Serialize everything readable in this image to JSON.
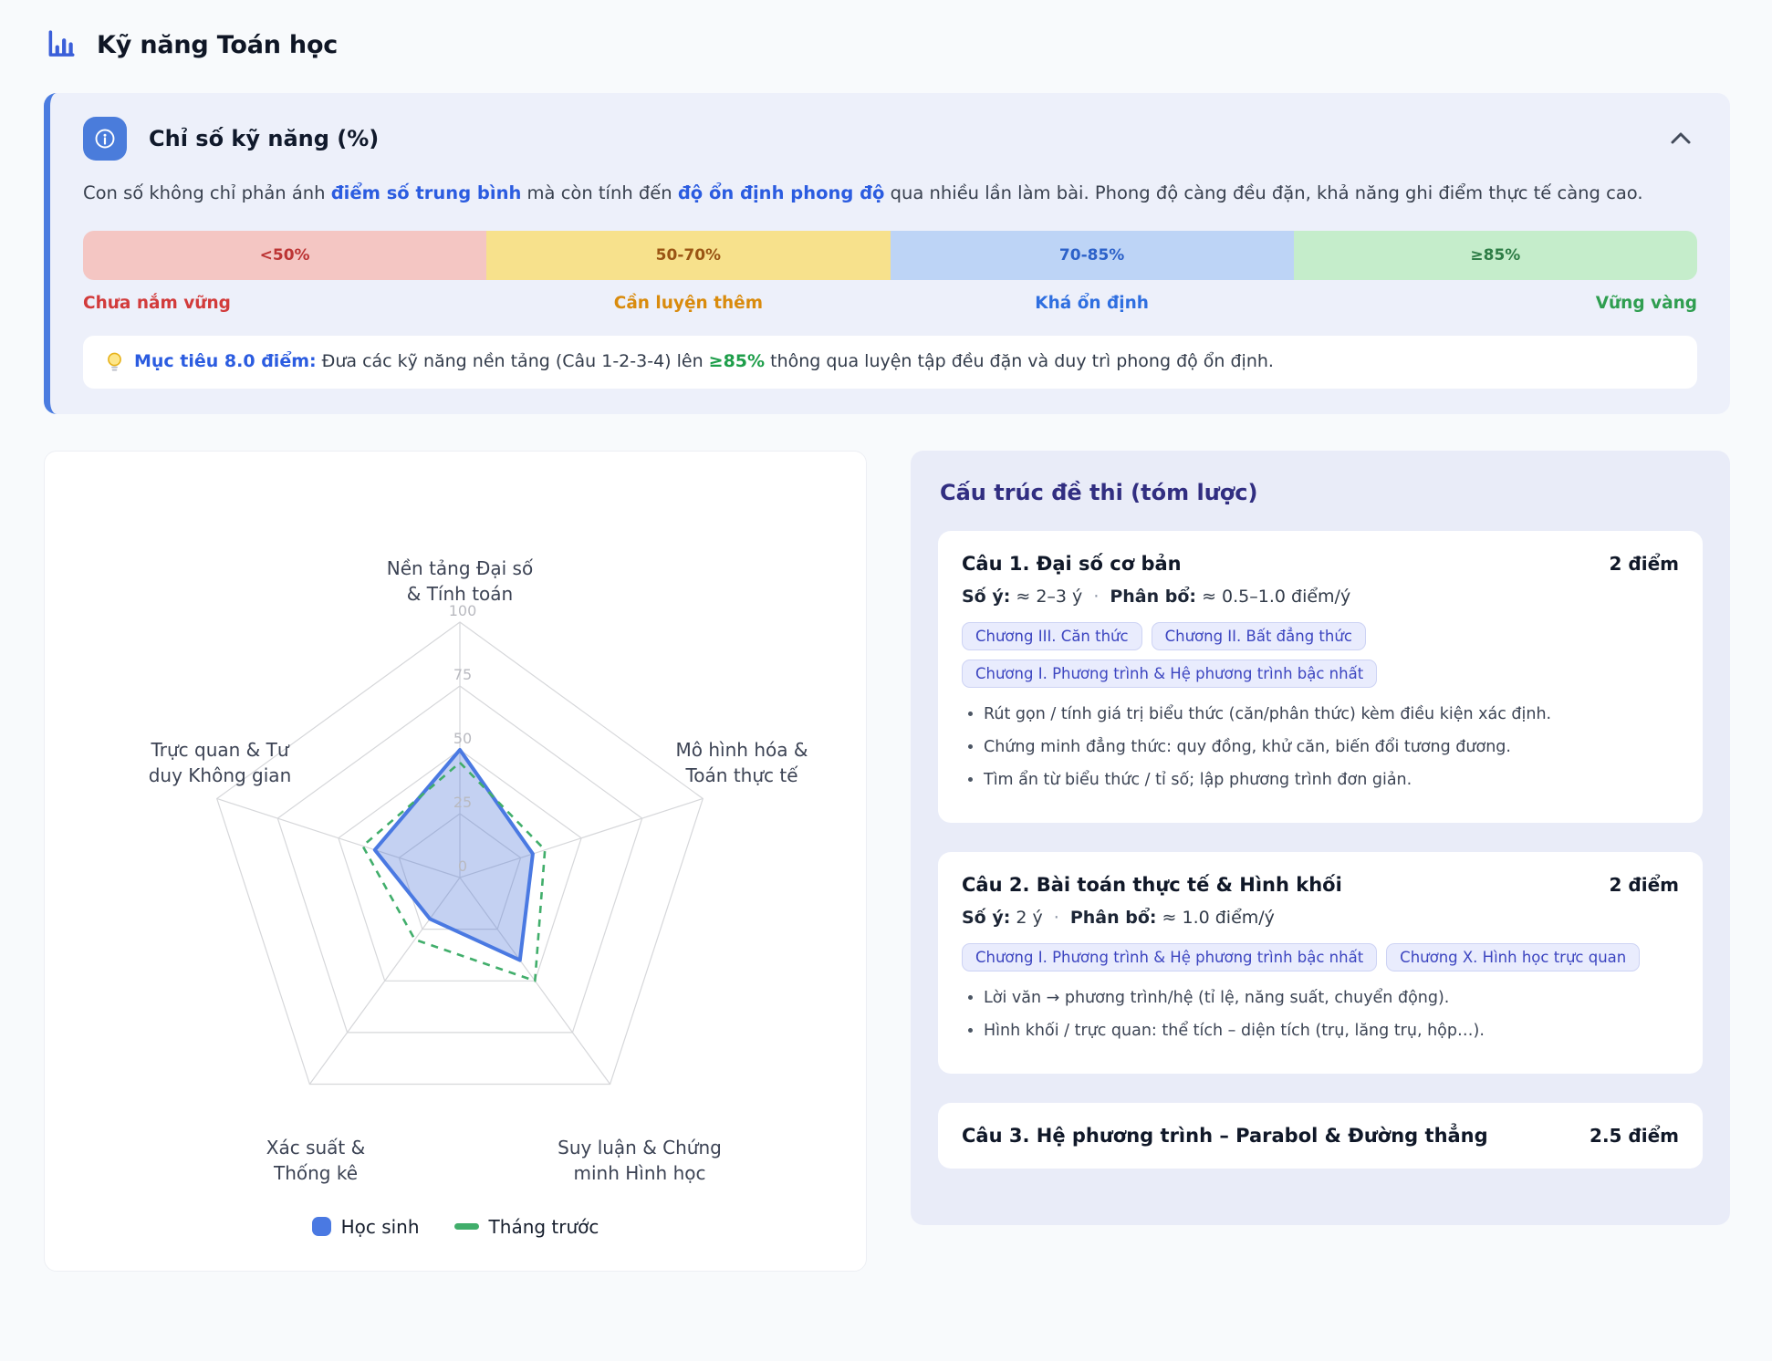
{
  "page": {
    "title": "Kỹ năng Toán học"
  },
  "panel": {
    "title": "Chỉ số kỹ năng (%)",
    "description_parts": [
      {
        "t": "Con số không chỉ phản ánh "
      },
      {
        "t": "điểm số trung bình",
        "s": "blue"
      },
      {
        "t": " mà còn tính đến "
      },
      {
        "t": "độ ổn định phong độ",
        "s": "blue"
      },
      {
        "t": " qua nhiều lần làm bài. Phong độ càng đều đặn, khả năng ghi điểm thực tế càng cao."
      }
    ],
    "scale": {
      "segments": [
        {
          "range": "<50%",
          "label": "Chưa nắm vững",
          "bg": "#f4c6c3",
          "range_color": "#bc3434",
          "label_color": "#d23b3b"
        },
        {
          "range": "50-70%",
          "label": "Cần luyện thêm",
          "bg": "#f7e18c",
          "range_color": "#9a5514",
          "label_color": "#d98b0d"
        },
        {
          "range": "70-85%",
          "label": "Khá ổn định",
          "bg": "#bdd4f6",
          "range_color": "#2d62c9",
          "label_color": "#2f6fe0"
        },
        {
          "range": "≥85%",
          "label": "Vững vàng",
          "bg": "#c5edcb",
          "range_color": "#2e7d46",
          "label_color": "#2f9e50"
        }
      ]
    },
    "goal_parts": [
      {
        "t": "Mục tiêu 8.0 điểm:",
        "s": "blue"
      },
      {
        "t": " Đưa các kỹ năng nền tảng (Câu 1-2-3-4) lên "
      },
      {
        "t": "≥85%",
        "s": "green"
      },
      {
        "t": " thông qua luyện tập đều đặn và duy trì phong độ ổn định."
      }
    ]
  },
  "chart_data": {
    "type": "radar",
    "max": 100,
    "ticks": [
      0,
      25,
      50,
      75,
      100
    ],
    "categories": [
      "Nền tảng Đại số & Tính toán",
      "Mô hình hóa & Toán thực tế",
      "Suy luận & Chứng minh Hình học",
      "Xác suất & Thống kê",
      "Trực quan & Tư duy Không gian"
    ],
    "axis_labels_2line": [
      "Nền tảng Đại số\n& Tính toán",
      "Mô hình hóa &\nToán thực tế",
      "Suy luận & Chứng\nminh Hình học",
      "Xác suất &\nThống kê",
      "Trực quan & Tư\nduy Không gian"
    ],
    "series": [
      {
        "name": "Học sinh",
        "values": [
          50,
          30,
          40,
          20,
          35
        ],
        "color": "#4a79e2",
        "fill": "rgba(77,116,217,0.33)",
        "marker": "square",
        "dashed": false
      },
      {
        "name": "Tháng trước",
        "values": [
          45,
          35,
          50,
          30,
          40
        ],
        "color": "#41ae6b",
        "fill": "none",
        "marker": "dash",
        "dashed": true
      }
    ],
    "grid_color": "#d6d7da",
    "tick_color": "#b9bac0",
    "label_color": "#3c4354",
    "legend_position": "bottom"
  },
  "exam": {
    "title": "Cấu trúc đề thi (tóm lược)",
    "meta_separator": "·",
    "cards": [
      {
        "title": "Câu 1. Đại số cơ bản",
        "points": "2 điểm",
        "meta": [
          {
            "label": "Số ý:",
            "value": "≈ 2–3 ý"
          },
          {
            "label": "Phân bổ:",
            "value": "≈ 0.5–1.0 điểm/ý"
          }
        ],
        "chips": [
          "Chương III. Căn thức",
          "Chương II. Bất đẳng thức",
          "Chương I. Phương trình & Hệ phương trình bậc nhất"
        ],
        "bullets": [
          "Rút gọn / tính giá trị biểu thức (căn/phân thức) kèm điều kiện xác định.",
          "Chứng minh đẳng thức: quy đồng, khử căn, biến đổi tương đương.",
          "Tìm ẩn từ biểu thức / tỉ số; lập phương trình đơn giản."
        ]
      },
      {
        "title": "Câu 2. Bài toán thực tế & Hình khối",
        "points": "2 điểm",
        "meta": [
          {
            "label": "Số ý:",
            "value": "2 ý"
          },
          {
            "label": "Phân bổ:",
            "value": "≈ 1.0 điểm/ý"
          }
        ],
        "chips": [
          "Chương I. Phương trình & Hệ phương trình bậc nhất",
          "Chương X. Hình học trực quan"
        ],
        "bullets": [
          "Lời văn → phương trình/hệ (tỉ lệ, năng suất, chuyển động).",
          "Hình khối / trực quan: thể tích – diện tích (trụ, lăng trụ, hộp…)."
        ]
      },
      {
        "title": "Câu 3. Hệ phương trình – Parabol & Đường thẳng",
        "points": "2.5 điểm",
        "meta": [],
        "chips": [],
        "bullets": []
      }
    ]
  },
  "colors": {
    "accent_blue": "#4b7ce0",
    "panel_bg": "#edf0fa",
    "exam_panel_bg": "#e9ecf8",
    "page_bg": "#f8fafc"
  }
}
